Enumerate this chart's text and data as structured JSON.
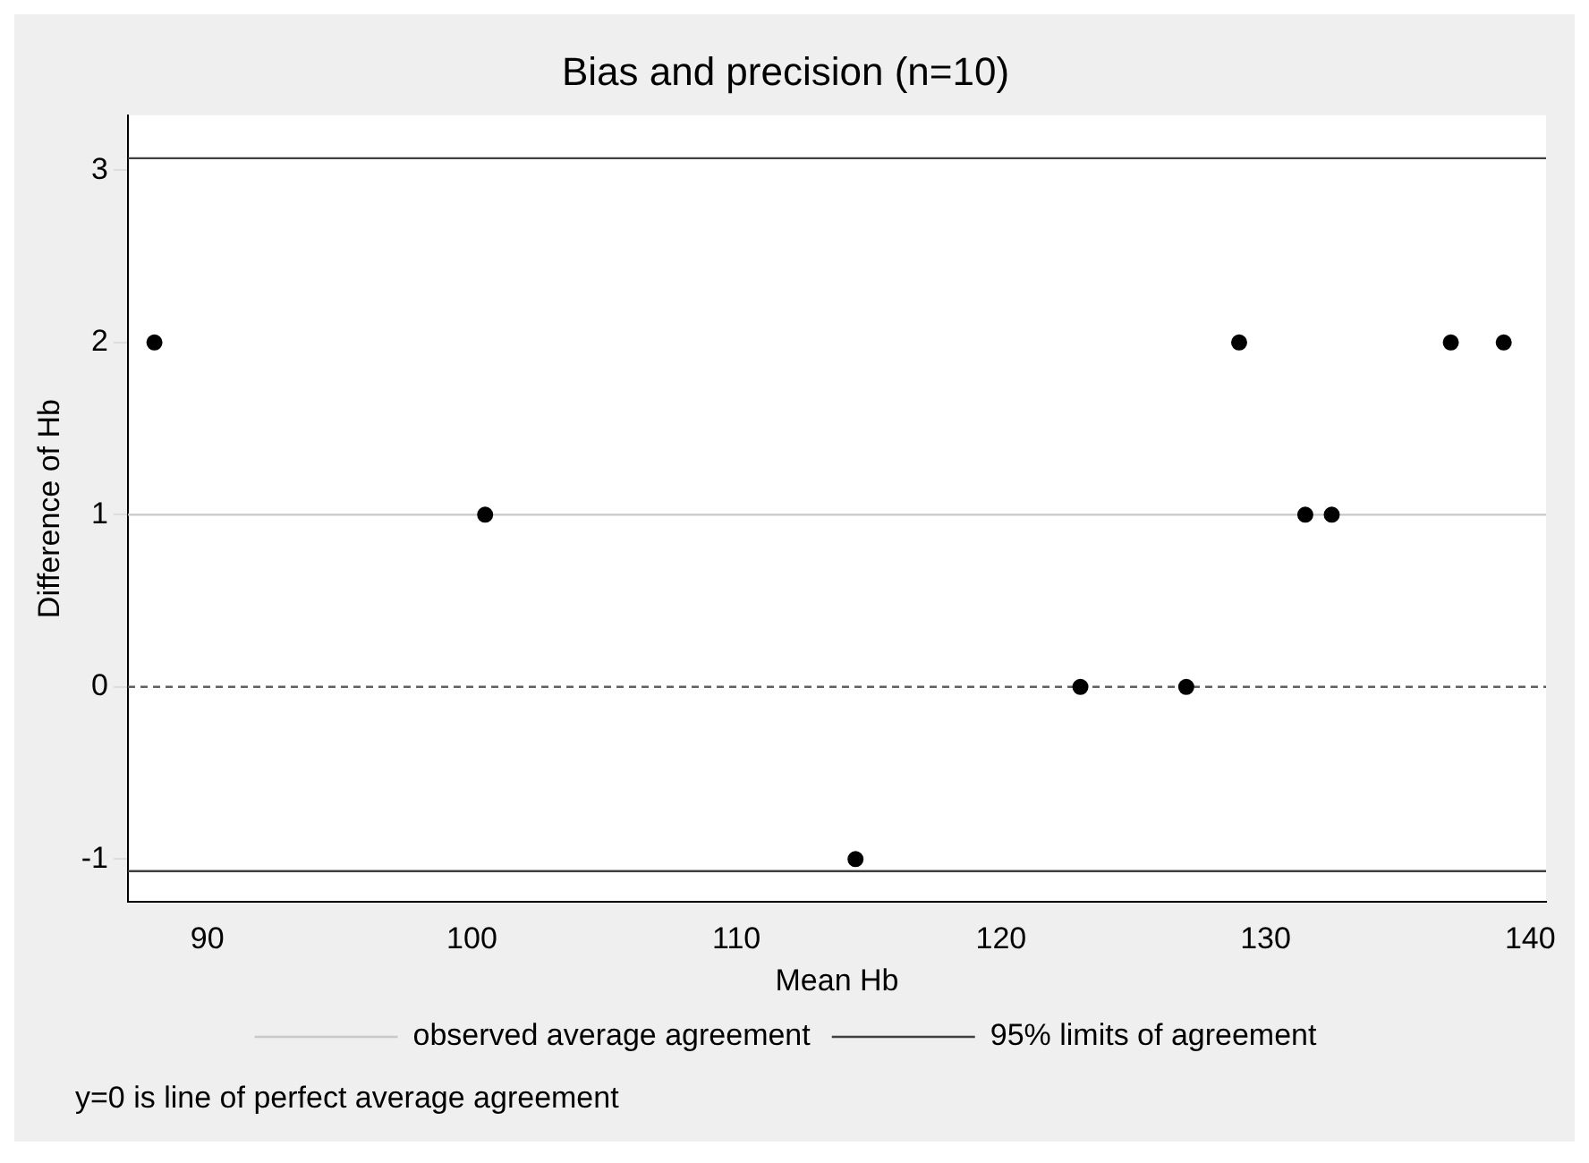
{
  "chart_data": {
    "type": "scatter",
    "title": "Bias and precision (n=10)",
    "xlabel": "Mean Hb",
    "ylabel": "Difference of Hb",
    "series": [
      {
        "color": "#000000",
        "x": [
          88,
          100.5,
          114.5,
          123,
          127,
          129,
          131.5,
          132.5,
          137,
          139
        ],
        "values": [
          2,
          1,
          -1,
          0,
          0,
          2,
          1,
          1,
          2,
          2
        ]
      }
    ],
    "marker": "circle",
    "xlim": [
      87,
      140.6
    ],
    "xticks": [
      90,
      100,
      110,
      120,
      130,
      140
    ],
    "ylim": [
      -1.25,
      3.32
    ],
    "yticks": [
      -1,
      0,
      1,
      2,
      3
    ],
    "grid": false,
    "ref_lines": [
      {
        "axis": "y",
        "value": 1,
        "label": "observed average agreement",
        "color": "#c8c8c8"
      },
      {
        "axis": "y",
        "value": 3.07,
        "label": "95% limits of agreement",
        "color": "#404040"
      },
      {
        "axis": "y",
        "value": -1.07,
        "color": "#404040"
      },
      {
        "axis": "y",
        "value": 0,
        "color": "#606060",
        "line_style": "dashed"
      }
    ],
    "legend": "bottom",
    "annotations": [
      "y=0 is line of perfect average agreement"
    ]
  }
}
